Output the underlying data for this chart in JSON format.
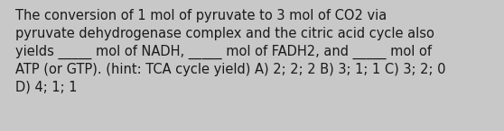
{
  "line1": "The conversion of 1 mol of pyruvate to 3 mol of CO2 via",
  "line2": "pyruvate dehydrogenase complex and the citric acid cycle also",
  "line3": "yields _____ mol of NADH, _____ mol of FADH2, and _____ mol of",
  "line4": "ATP (or GTP). (hint: TCA cycle yield) A) 2; 2; 2 B) 3; 1; 1 C) 3; 2; 0",
  "line5": "D) 4; 1; 1",
  "background_color": "#c8c8c8",
  "text_color": "#1a1a1a",
  "font_size": 10.5,
  "fig_width": 5.58,
  "fig_height": 1.46,
  "dpi": 100
}
